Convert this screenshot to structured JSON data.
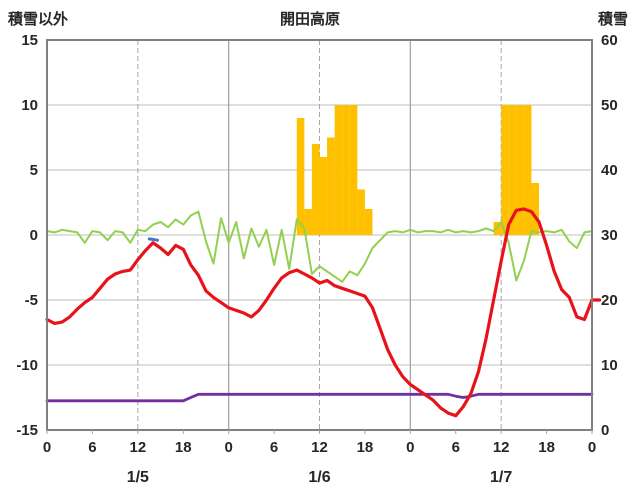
{
  "header": {
    "left_axis_title": "積雪以外",
    "title": "開田高原",
    "right_axis_title": "積雪"
  },
  "chart_data": {
    "type": "line+bar",
    "title": "開田高原",
    "left_axis": {
      "title": "積雪以外",
      "min": -15,
      "max": 15,
      "ticks": [
        15,
        10,
        5,
        0,
        -5,
        -10,
        -15
      ]
    },
    "right_axis": {
      "title": "積雪",
      "min": 0,
      "max": 60,
      "ticks": [
        60,
        50,
        40,
        30,
        20,
        10,
        0
      ]
    },
    "x_range": [
      0,
      72
    ],
    "x_tick_hours": [
      0,
      6,
      12,
      18,
      24,
      30,
      36,
      42,
      48,
      54,
      60,
      66,
      72
    ],
    "x_tick_labels": [
      "0",
      "6",
      "12",
      "18",
      "0",
      "6",
      "12",
      "18",
      "0",
      "6",
      "12",
      "18",
      "0"
    ],
    "dates": [
      {
        "label": "1/5",
        "center_hour": 12
      },
      {
        "label": "1/6",
        "center_hour": 36
      },
      {
        "label": "1/7",
        "center_hour": 60
      }
    ],
    "day_boundary_hours": [
      24,
      48
    ],
    "noon_hours": [
      12,
      36,
      60
    ],
    "series": [
      {
        "name": "red_line_left_axis",
        "axis": "left",
        "color": "#e8131a",
        "width": 3.2,
        "values": [
          -6.5,
          -6.8,
          -6.7,
          -6.3,
          -5.7,
          -5.2,
          -4.8,
          -4.1,
          -3.4,
          -3.0,
          -2.8,
          -2.7,
          -1.9,
          -1.2,
          -0.6,
          -1.0,
          -1.5,
          -0.8,
          -1.1,
          -2.3,
          -3.1,
          -4.3,
          -4.8,
          -5.2,
          -5.6,
          -5.8,
          -6.0,
          -6.3,
          -5.8,
          -5.0,
          -4.1,
          -3.3,
          -2.9,
          -2.7,
          -3.0,
          -3.3,
          -3.7,
          -3.5,
          -3.9,
          -4.1,
          -4.3,
          -4.5,
          -4.7,
          -5.6,
          -7.2,
          -8.8,
          -10.0,
          -10.9,
          -11.5,
          -11.9,
          -12.3,
          -12.7,
          -13.3,
          -13.7,
          -13.9,
          -13.2,
          -12.2,
          -10.5,
          -8.0,
          -5.0,
          -2.0,
          0.8,
          1.9,
          2.0,
          1.8,
          1.0,
          -0.8,
          -2.8,
          -4.2,
          -4.8,
          -6.3,
          -6.5,
          -5.0,
          -5.0
        ]
      },
      {
        "name": "green_line_left_axis",
        "axis": "left",
        "color": "#92d050",
        "width": 2,
        "values": [
          0.3,
          0.2,
          0.4,
          0.3,
          0.2,
          -0.6,
          0.3,
          0.2,
          -0.4,
          0.3,
          0.2,
          -0.6,
          0.4,
          0.3,
          0.8,
          1.0,
          0.6,
          1.2,
          0.8,
          1.5,
          1.8,
          -0.5,
          -2.2,
          1.3,
          -0.6,
          1.0,
          -1.8,
          0.5,
          -0.9,
          0.4,
          -2.3,
          0.4,
          -2.6,
          1.2,
          0.5,
          -3.0,
          -2.4,
          -2.8,
          -3.2,
          -3.6,
          -2.8,
          -3.1,
          -2.2,
          -1.0,
          -0.4,
          0.2,
          0.3,
          0.2,
          0.4,
          0.2,
          0.3,
          0.3,
          0.2,
          0.4,
          0.2,
          0.3,
          0.2,
          0.3,
          0.5,
          0.3,
          1.0,
          -0.6,
          -3.5,
          -2.0,
          0.3,
          0.2,
          0.3,
          0.2,
          0.4,
          -0.5,
          -1.0,
          0.2,
          0.3
        ]
      },
      {
        "name": "purple_line_snow_depth_right_axis",
        "axis": "right",
        "color": "#7030a0",
        "width": 2.8,
        "values": [
          4.5,
          4.5,
          4.5,
          4.5,
          4.5,
          4.5,
          4.5,
          4.5,
          4.5,
          4.5,
          4.5,
          4.5,
          4.5,
          4.5,
          4.5,
          4.5,
          4.5,
          4.5,
          4.5,
          5.0,
          5.5,
          5.5,
          5.5,
          5.5,
          5.5,
          5.5,
          5.5,
          5.5,
          5.5,
          5.5,
          5.5,
          5.5,
          5.5,
          5.5,
          5.5,
          5.5,
          5.5,
          5.5,
          5.5,
          5.5,
          5.5,
          5.5,
          5.5,
          5.5,
          5.5,
          5.5,
          5.5,
          5.5,
          5.5,
          5.5,
          5.5,
          5.5,
          5.5,
          5.5,
          5.2,
          5.0,
          5.2,
          5.5,
          5.5,
          5.5,
          5.5,
          5.5,
          5.5,
          5.5,
          5.5,
          5.5,
          5.5,
          5.5,
          5.5,
          5.5,
          5.5,
          5.5,
          5.5
        ]
      }
    ],
    "blue_segment": {
      "name": "blue_segment_left_axis",
      "color": "#4472c4",
      "width": 3,
      "points": [
        [
          13.5,
          -0.3
        ],
        [
          14.6,
          -0.4
        ]
      ]
    },
    "bars": [
      {
        "hour": 33,
        "value": 9
      },
      {
        "hour": 34,
        "value": 2
      },
      {
        "hour": 35,
        "value": 7
      },
      {
        "hour": 36,
        "value": 6
      },
      {
        "hour": 37,
        "value": 7.5
      },
      {
        "hour": 38,
        "value": 10
      },
      {
        "hour": 39,
        "value": 10
      },
      {
        "hour": 40,
        "value": 10
      },
      {
        "hour": 41,
        "value": 3.5
      },
      {
        "hour": 42,
        "value": 2
      },
      {
        "hour": 59,
        "value": 1
      },
      {
        "hour": 60,
        "value": 10
      },
      {
        "hour": 61,
        "value": 10
      },
      {
        "hour": 62,
        "value": 10
      },
      {
        "hour": 63,
        "value": 10
      },
      {
        "hour": 64,
        "value": 4
      }
    ],
    "colors": {
      "bars": "#ffc000",
      "grid": "#bfbfbf",
      "grid_dark": "#a6a6a6",
      "border": "#808080",
      "text": "#1a1a1a",
      "background": "#ffffff"
    },
    "legend": "none"
  }
}
